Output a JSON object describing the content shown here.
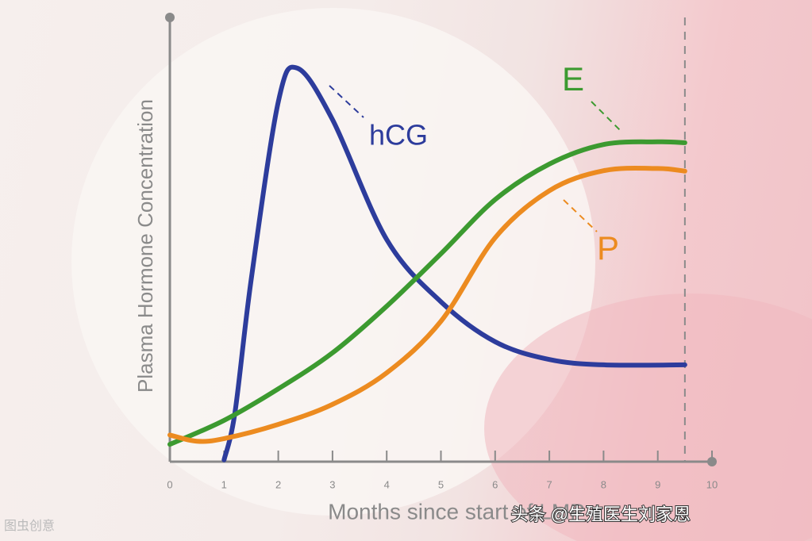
{
  "chart_data": {
    "type": "line",
    "xlabel": "Months since start of LMP",
    "ylabel": "Plasma Hormone Concentration",
    "xlim": [
      0,
      10
    ],
    "xticks": [
      0,
      1,
      2,
      3,
      4,
      5,
      6,
      7,
      8,
      9,
      10
    ],
    "ylim": [
      0,
      100
    ],
    "vline": 9.5,
    "series": [
      {
        "name": "hCG",
        "color": "#2d3c9c",
        "x": [
          1,
          1.2,
          1.5,
          2,
          2.35,
          3,
          4,
          5,
          6,
          7,
          8,
          9.5
        ],
        "values": [
          0.4,
          11,
          41,
          81,
          88.6,
          77,
          50,
          36,
          27,
          23,
          21.8,
          21.8
        ]
      },
      {
        "name": "E",
        "color": "#3c9a30",
        "x": [
          0,
          1,
          2,
          3,
          4,
          5,
          6,
          7,
          8,
          9,
          9.5
        ],
        "values": [
          3.9,
          9.3,
          16.4,
          24.5,
          35,
          46.8,
          59,
          67,
          71.4,
          72,
          71.8
        ]
      },
      {
        "name": "P",
        "color": "#ec8b20",
        "x": [
          0,
          0.5,
          1,
          2,
          3,
          4,
          5,
          6,
          7,
          8,
          9,
          9.5
        ],
        "values": [
          6,
          4.6,
          5.2,
          8.4,
          12.9,
          20,
          31.6,
          50.4,
          61,
          65.5,
          66,
          65.4
        ]
      }
    ],
    "annotations": [
      "头条 @生殖医生刘家恩",
      "图虫创意"
    ]
  }
}
